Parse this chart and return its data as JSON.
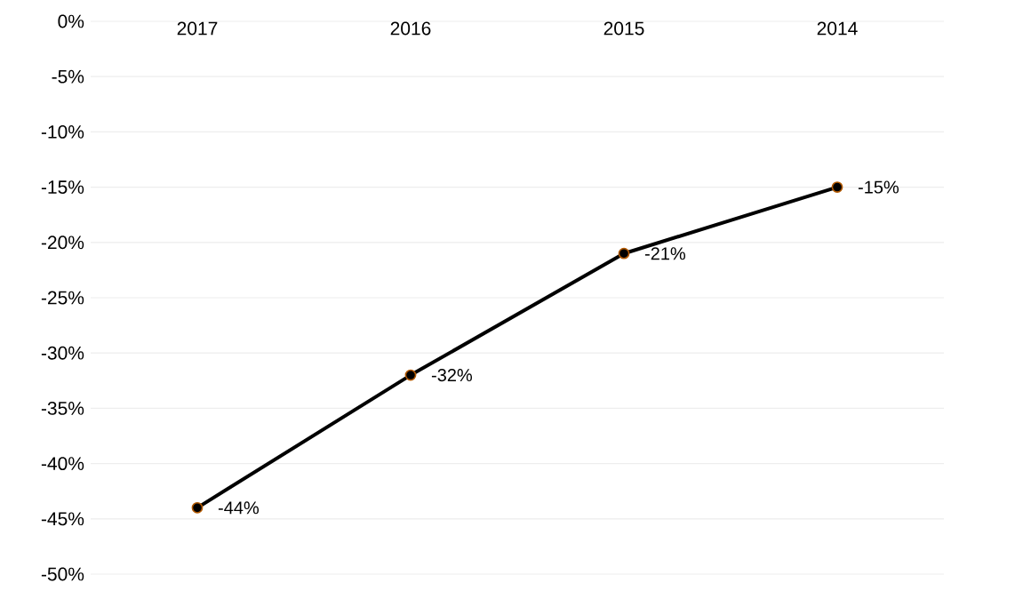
{
  "chart_data": {
    "type": "line",
    "categories": [
      "2017",
      "2016",
      "2015",
      "2014"
    ],
    "series": [
      {
        "color": "#000000",
        "values": [
          -44,
          -32,
          -21,
          -15
        ],
        "value_labels": [
          "-44%",
          "-32%",
          "-21%",
          "-15%"
        ]
      }
    ],
    "ylim": [
      -50,
      0
    ],
    "yticks": [
      {
        "value": 0,
        "label": "0%"
      },
      {
        "value": -5,
        "label": "-5%"
      },
      {
        "value": -10,
        "label": "-10%"
      },
      {
        "value": -15,
        "label": "-15%"
      },
      {
        "value": -20,
        "label": "-20%"
      },
      {
        "value": -25,
        "label": "-25%"
      },
      {
        "value": -30,
        "label": "-30%"
      },
      {
        "value": -35,
        "label": "-35%"
      },
      {
        "value": -40,
        "label": "-40%"
      },
      {
        "value": -45,
        "label": "-45%"
      },
      {
        "value": -50,
        "label": "-50%"
      }
    ],
    "grid": "y",
    "marker": "circle",
    "line_style": "solid"
  }
}
